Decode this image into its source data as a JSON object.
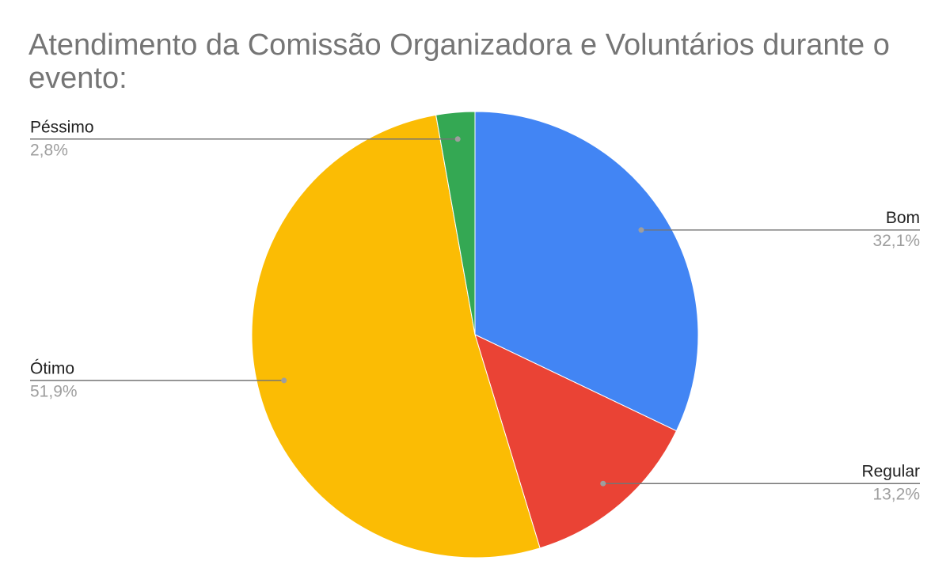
{
  "chart_data": {
    "type": "pie",
    "title": "Atendimento da Comissão Organizadora e Voluntários durante o evento:",
    "categories": [
      "Bom",
      "Regular",
      "Ótimo",
      "Péssimo"
    ],
    "values": [
      32.1,
      13.2,
      51.9,
      2.8
    ],
    "value_labels": [
      "32,1%",
      "13,2%",
      "51,9%",
      "2,8%"
    ],
    "colors": [
      "#4285f4",
      "#ea4335",
      "#fbbc04",
      "#34a853"
    ]
  }
}
